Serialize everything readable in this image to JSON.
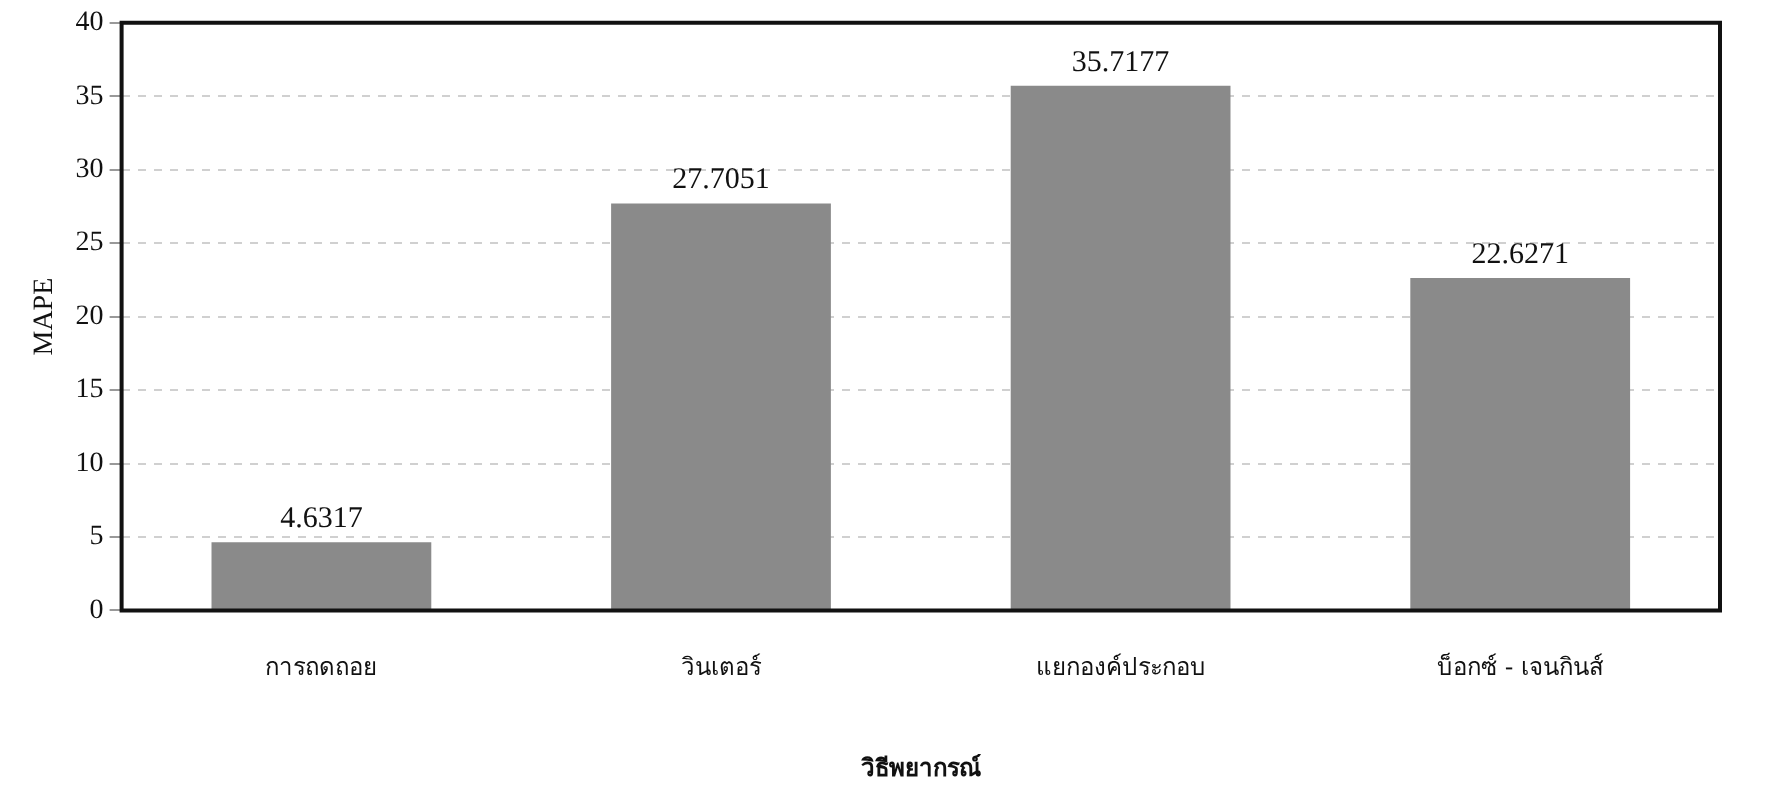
{
  "chart_data": {
    "type": "bar",
    "xlabel": "วิธีพยากรณ์",
    "ylabel": "MAPE",
    "categories": [
      "การถดถอย",
      "วินเตอร์",
      "แยกองค์ประกอบ",
      "บ็อกซ์ - เจนกินส์"
    ],
    "values": [
      4.6317,
      27.7051,
      35.7177,
      22.6271
    ],
    "color": "#8a8a8a",
    "ylim": [
      0,
      40
    ],
    "yticks": [
      0,
      5,
      10,
      15,
      20,
      25,
      30,
      35,
      40
    ],
    "grid": "y",
    "data_labels": true,
    "legend": false
  }
}
